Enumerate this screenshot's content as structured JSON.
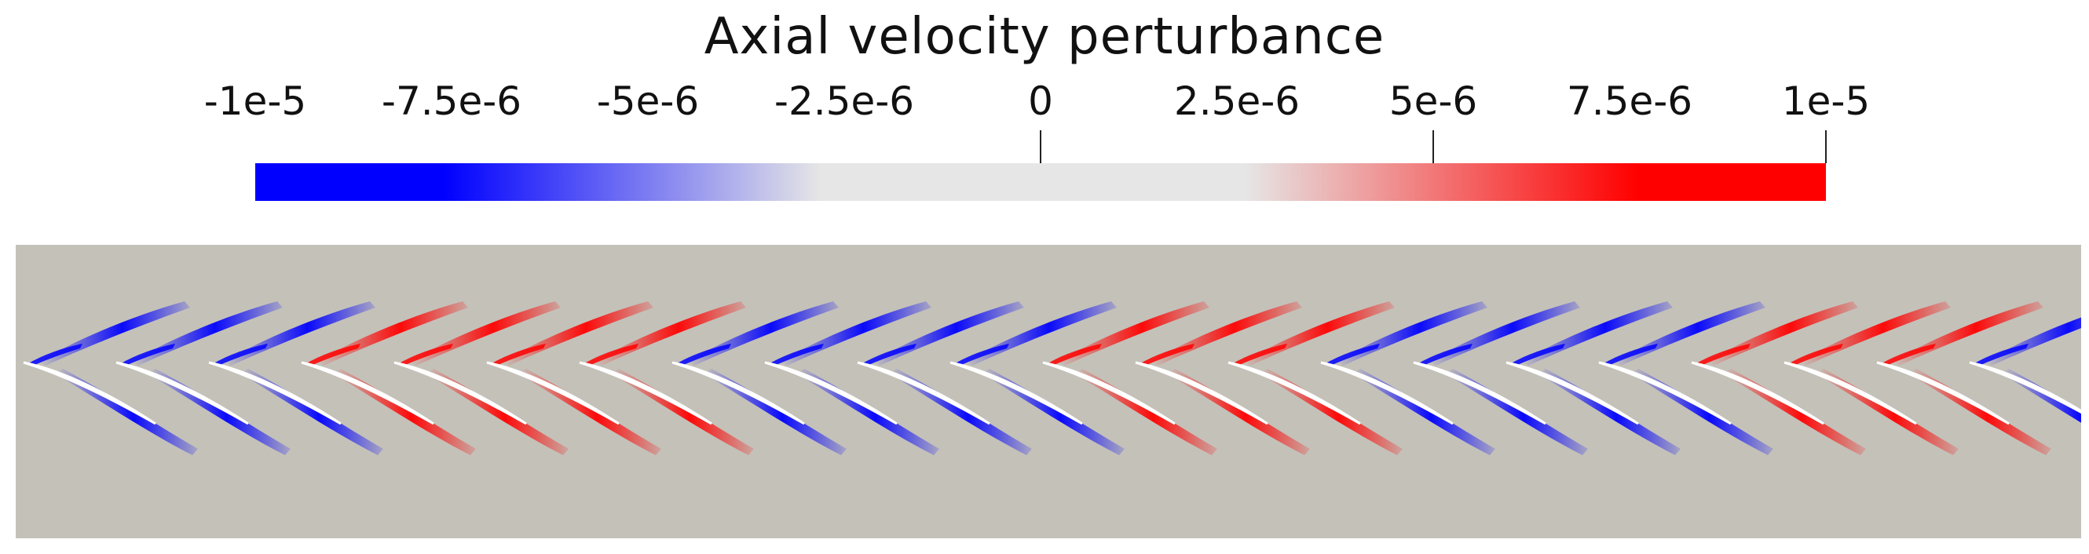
{
  "colorbar": {
    "title": "Axial velocity perturbance",
    "min_color": "#0000ff",
    "mid_color": "#e6e6e6",
    "max_color": "#ff0000",
    "range": [
      -1e-05,
      1e-05
    ],
    "ticks": [
      {
        "value": -1e-05,
        "label": "-1e-5"
      },
      {
        "value": -7.5e-06,
        "label": "-7.5e-6"
      },
      {
        "value": -5e-06,
        "label": "-5e-6"
      },
      {
        "value": -2.5e-06,
        "label": "-2.5e-6"
      },
      {
        "value": 0,
        "label": "0"
      },
      {
        "value": 2.5e-06,
        "label": "2.5e-6"
      },
      {
        "value": 5e-06,
        "label": "5e-6"
      },
      {
        "value": 7.5e-06,
        "label": "7.5e-6"
      },
      {
        "value": 1e-05,
        "label": "1e-5"
      }
    ],
    "tick_marks_shown": [
      0,
      5e-06,
      1e-05
    ]
  },
  "field": {
    "background_color": "#c4c1b9",
    "blade_color": "#ffffff",
    "blade_count": 22,
    "wake_pattern": [
      "-",
      "-",
      "-",
      "+",
      "+",
      "+",
      "+",
      "-",
      "-",
      "-",
      "-",
      "+",
      "+",
      "+",
      "-",
      "-",
      "-",
      "-",
      "+",
      "+",
      "+",
      "-"
    ]
  }
}
